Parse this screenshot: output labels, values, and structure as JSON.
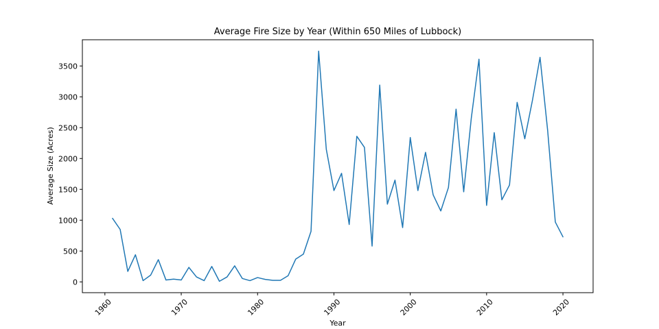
{
  "chart_data": {
    "type": "line",
    "title": "Average Fire Size by Year (Within 650 Miles of Lubbock)",
    "xlabel": "Year",
    "ylabel": "Average Size (Acres)",
    "xlim": [
      1957.05,
      2023.95
    ],
    "ylim": [
      -175,
      3925
    ],
    "xticks": [
      1960,
      1970,
      1980,
      1990,
      2000,
      2010,
      2020
    ],
    "xtick_labels": [
      "1960",
      "1970",
      "1980",
      "1990",
      "2000",
      "2010",
      "2020"
    ],
    "yticks": [
      0,
      500,
      1000,
      1500,
      2000,
      2500,
      3000,
      3500
    ],
    "ytick_labels": [
      "0",
      "500",
      "1000",
      "1500",
      "2000",
      "2500",
      "3000",
      "3500"
    ],
    "grid": false,
    "series": [
      {
        "color": "#1f77b4",
        "x": [
          1961,
          1962,
          1963,
          1964,
          1965,
          1966,
          1967,
          1968,
          1969,
          1970,
          1971,
          1972,
          1973,
          1974,
          1975,
          1976,
          1977,
          1978,
          1979,
          1980,
          1981,
          1982,
          1983,
          1984,
          1985,
          1986,
          1987,
          1988,
          1989,
          1990,
          1991,
          1992,
          1993,
          1994,
          1995,
          1996,
          1997,
          1998,
          1999,
          2000,
          2001,
          2002,
          2003,
          2004,
          2005,
          2006,
          2007,
          2008,
          2009,
          2010,
          2011,
          2012,
          2013,
          2014,
          2015,
          2016,
          2017,
          2018,
          2019,
          2020
        ],
        "y": [
          1030,
          850,
          170,
          440,
          20,
          110,
          360,
          30,
          45,
          30,
          235,
          80,
          20,
          250,
          10,
          80,
          260,
          55,
          20,
          70,
          40,
          25,
          25,
          100,
          370,
          450,
          820,
          3740,
          2150,
          1480,
          1760,
          930,
          2360,
          2180,
          580,
          3190,
          1260,
          1650,
          880,
          2340,
          1480,
          2100,
          1410,
          1150,
          1530,
          2800,
          1460,
          2660,
          3610,
          1240,
          2420,
          1330,
          1570,
          2910,
          2320,
          2940,
          3640,
          2450,
          970,
          730
        ]
      }
    ]
  }
}
